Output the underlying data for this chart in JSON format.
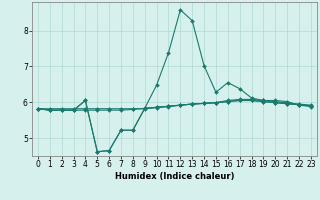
{
  "xlabel": "Humidex (Indice chaleur)",
  "background_color": "#d6f0ee",
  "grid_color": "#b0d8d4",
  "line_color": "#1a7a6e",
  "xlim": [
    -0.5,
    23.5
  ],
  "ylim": [
    4.5,
    8.8
  ],
  "yticks": [
    5,
    6,
    7,
    8
  ],
  "xticks": [
    0,
    1,
    2,
    3,
    4,
    5,
    6,
    7,
    8,
    9,
    10,
    11,
    12,
    13,
    14,
    15,
    16,
    17,
    18,
    19,
    20,
    21,
    22,
    23
  ],
  "series": [
    [
      5.82,
      5.82,
      5.82,
      5.82,
      5.82,
      5.82,
      5.82,
      5.82,
      5.82,
      5.82,
      5.85,
      5.88,
      5.92,
      5.95,
      5.97,
      5.99,
      6.05,
      6.08,
      6.08,
      6.05,
      6.02,
      5.98,
      5.95,
      5.92
    ],
    [
      5.82,
      5.78,
      5.78,
      5.78,
      5.78,
      5.78,
      5.78,
      5.78,
      5.8,
      5.83,
      5.86,
      5.89,
      5.92,
      5.95,
      5.97,
      5.99,
      6.02,
      6.05,
      6.05,
      6.02,
      5.99,
      5.96,
      5.93,
      5.9
    ],
    [
      5.82,
      5.78,
      5.78,
      5.78,
      6.05,
      4.62,
      4.65,
      5.22,
      5.22,
      5.83,
      5.86,
      5.89,
      5.92,
      5.95,
      5.97,
      5.99,
      6.02,
      6.05,
      6.05,
      6.02,
      5.99,
      5.96,
      5.93,
      5.9
    ],
    [
      5.82,
      5.78,
      5.78,
      5.78,
      6.05,
      4.62,
      4.65,
      5.22,
      5.22,
      5.83,
      6.48,
      7.38,
      8.58,
      8.28,
      7.02,
      6.28,
      6.55,
      6.38,
      6.12,
      6.05,
      6.05,
      6.02,
      5.92,
      5.88
    ]
  ]
}
